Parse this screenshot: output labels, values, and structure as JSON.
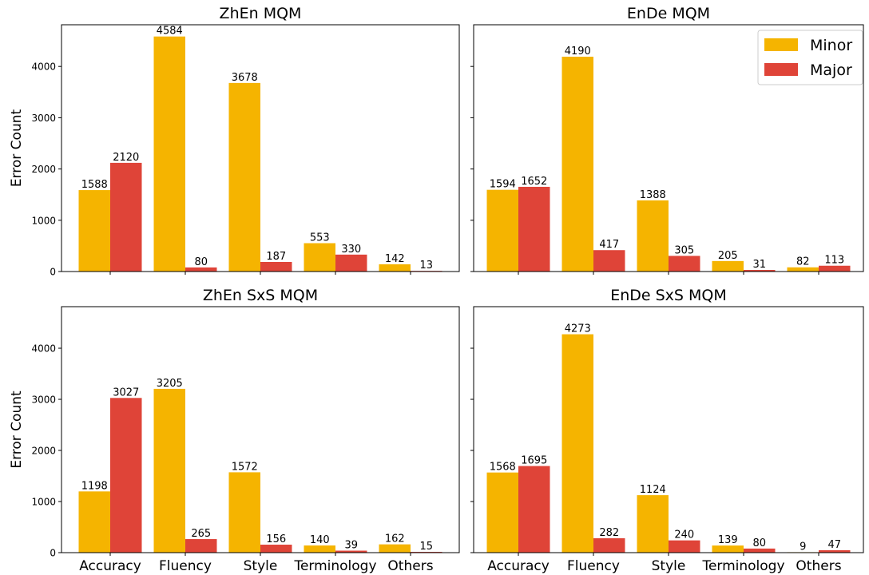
{
  "legend": {
    "position": "top-right",
    "entries": [
      "Minor",
      "Major"
    ]
  },
  "colors": {
    "minor": "#f5b400",
    "major": "#df4438"
  },
  "chart_data": [
    {
      "type": "bar",
      "title": "ZhEn MQM",
      "ylabel": "Error Count",
      "categories": [
        "Accuracy",
        "Fluency",
        "Style",
        "Terminology",
        "Others"
      ],
      "yticks": [
        "0",
        "1000",
        "2000",
        "3000",
        "4000"
      ],
      "ylim": [
        0,
        4813
      ],
      "show_xticklabels": false,
      "series": [
        {
          "name": "Minor",
          "values": [
            1588,
            4584,
            3678,
            553,
            142
          ]
        },
        {
          "name": "Major",
          "values": [
            2120,
            80,
            187,
            330,
            13
          ]
        }
      ]
    },
    {
      "type": "bar",
      "title": "EnDe MQM",
      "ylabel": "",
      "categories": [
        "Accuracy",
        "Fluency",
        "Style",
        "Terminology",
        "Others"
      ],
      "yticks": [],
      "ylim": [
        0,
        4813
      ],
      "show_xticklabels": false,
      "series": [
        {
          "name": "Minor",
          "values": [
            1594,
            4190,
            1388,
            205,
            82
          ]
        },
        {
          "name": "Major",
          "values": [
            1652,
            417,
            305,
            31,
            113
          ]
        }
      ]
    },
    {
      "type": "bar",
      "title": "ZhEn SxS MQM",
      "ylabel": "Error Count",
      "categories": [
        "Accuracy",
        "Fluency",
        "Style",
        "Terminology",
        "Others"
      ],
      "yticks": [
        "0",
        "1000",
        "2000",
        "3000",
        "4000"
      ],
      "ylim": [
        0,
        4813
      ],
      "show_xticklabels": true,
      "series": [
        {
          "name": "Minor",
          "values": [
            1198,
            3205,
            1572,
            140,
            162
          ]
        },
        {
          "name": "Major",
          "values": [
            3027,
            265,
            156,
            39,
            15
          ]
        }
      ]
    },
    {
      "type": "bar",
      "title": "EnDe SxS MQM",
      "ylabel": "",
      "categories": [
        "Accuracy",
        "Fluency",
        "Style",
        "Terminology",
        "Others"
      ],
      "yticks": [],
      "ylim": [
        0,
        4813
      ],
      "show_xticklabels": true,
      "series": [
        {
          "name": "Minor",
          "values": [
            1568,
            4273,
            1124,
            139,
            9
          ]
        },
        {
          "name": "Major",
          "values": [
            1695,
            282,
            240,
            80,
            47
          ]
        }
      ]
    }
  ]
}
